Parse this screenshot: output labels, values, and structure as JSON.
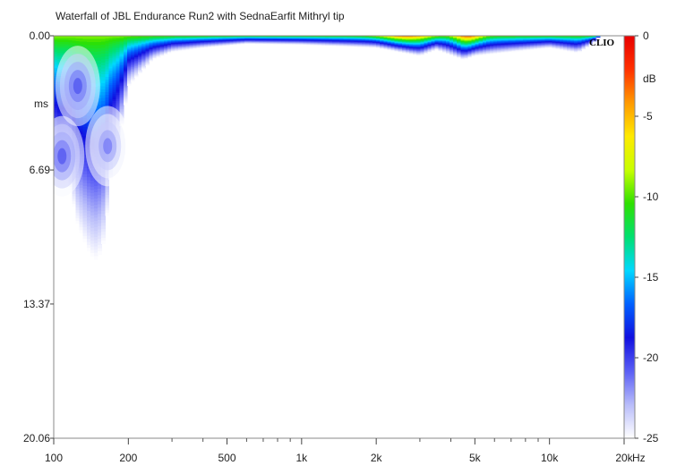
{
  "chart_data": {
    "type": "heatmap",
    "title": "Waterfall of JBL Endurance Run2 with SednaEarfit Mithryl tip",
    "watermark": "CLIO",
    "x_axis": {
      "scale": "log",
      "range": [
        100,
        20000
      ],
      "unit_label": "Hz",
      "ticks": [
        {
          "value": 100,
          "label": "100"
        },
        {
          "value": 200,
          "label": "200"
        },
        {
          "value": 500,
          "label": "500"
        },
        {
          "value": 1000,
          "label": "1k"
        },
        {
          "value": 2000,
          "label": "2k"
        },
        {
          "value": 5000,
          "label": "5k"
        },
        {
          "value": 10000,
          "label": "10k"
        },
        {
          "value": 20000,
          "label": "20k"
        }
      ]
    },
    "y_axis": {
      "label": "ms",
      "range": [
        0,
        20.06
      ],
      "reversed": true,
      "ticks": [
        {
          "value": 0,
          "label": "0.00"
        },
        {
          "value": 6.69,
          "label": "6.69"
        },
        {
          "value": 13.37,
          "label": "13.37"
        },
        {
          "value": 20.06,
          "label": "20.06"
        }
      ]
    },
    "colorbar": {
      "unit_label": "dB",
      "range": [
        -25,
        0
      ],
      "ticks": [
        {
          "value": 0,
          "label": "0"
        },
        {
          "value": -5,
          "label": "-5"
        },
        {
          "value": -10,
          "label": "-10"
        },
        {
          "value": -15,
          "label": "-15"
        },
        {
          "value": -20,
          "label": "-20"
        },
        {
          "value": -25,
          "label": "-25"
        }
      ],
      "colors": [
        "#ffffff",
        "#b8bcfa",
        "#5a5ef5",
        "#1010e0",
        "#0060ff",
        "#00d8ff",
        "#00e070",
        "#2ee000",
        "#c8ff00",
        "#ffea00",
        "#ff9a00",
        "#ff3000",
        "#e80000"
      ]
    },
    "decay_floor_ms": [
      {
        "freq": 100,
        "decay": 6.8
      },
      {
        "freq": 105,
        "decay": 7.4
      },
      {
        "freq": 115,
        "decay": 7.3
      },
      {
        "freq": 125,
        "decay": 9.4
      },
      {
        "freq": 140,
        "decay": 10.9
      },
      {
        "freq": 150,
        "decay": 11.2
      },
      {
        "freq": 160,
        "decay": 10.2
      },
      {
        "freq": 170,
        "decay": 7.0
      },
      {
        "freq": 180,
        "decay": 5.8
      },
      {
        "freq": 200,
        "decay": 2.5
      },
      {
        "freq": 250,
        "decay": 1.2
      },
      {
        "freq": 300,
        "decay": 0.8
      },
      {
        "freq": 400,
        "decay": 0.6
      },
      {
        "freq": 600,
        "decay": 0.4
      },
      {
        "freq": 1000,
        "decay": 0.45
      },
      {
        "freq": 2000,
        "decay": 0.6
      },
      {
        "freq": 3000,
        "decay": 1.0
      },
      {
        "freq": 3500,
        "decay": 0.7
      },
      {
        "freq": 4500,
        "decay": 1.2
      },
      {
        "freq": 5000,
        "decay": 1.0
      },
      {
        "freq": 7000,
        "decay": 0.8
      },
      {
        "freq": 10000,
        "decay": 0.6
      },
      {
        "freq": 13000,
        "decay": 0.85
      },
      {
        "freq": 15000,
        "decay": 0.4
      },
      {
        "freq": 16000,
        "decay": 0.0
      }
    ],
    "hot_regions": [
      {
        "freq_range": [
          2000,
          3500
        ],
        "peak_db": -1.5
      },
      {
        "freq_range": [
          4000,
          5500
        ],
        "peak_db": -1
      }
    ],
    "low_freq_lobes": [
      {
        "freq_center": 125,
        "time_center_ms": 2.5,
        "level_db": -20
      },
      {
        "freq_center": 165,
        "time_center_ms": 5.5,
        "level_db": -21
      },
      {
        "freq_center": 108,
        "time_center_ms": 6.0,
        "level_db": -20
      }
    ]
  }
}
